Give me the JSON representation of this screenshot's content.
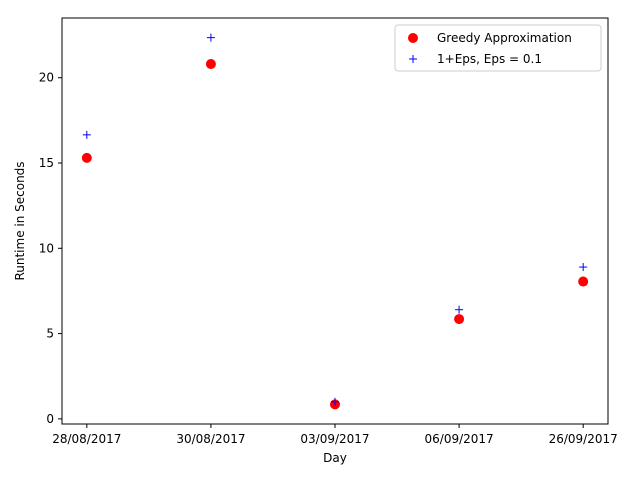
{
  "chart_data": {
    "type": "scatter",
    "title": "",
    "xlabel": "Day",
    "ylabel": "Runtime in Seconds",
    "categories": [
      "28/08/2017",
      "30/08/2017",
      "03/09/2017",
      "06/09/2017",
      "26/09/2017"
    ],
    "ylim": [
      -0.3,
      23.5
    ],
    "yticks": [
      0,
      5,
      10,
      15,
      20
    ],
    "grid": false,
    "legend_position": "top-right",
    "series": [
      {
        "name": "Greedy Approximation",
        "marker": "circle",
        "color": "#ff0000",
        "values": [
          15.3,
          20.8,
          0.85,
          5.85,
          8.05
        ]
      },
      {
        "name": "1+Eps, Eps = 0.1",
        "marker": "plus",
        "color": "#0000ff",
        "values": [
          16.65,
          22.35,
          1.0,
          6.4,
          8.9
        ]
      }
    ]
  }
}
